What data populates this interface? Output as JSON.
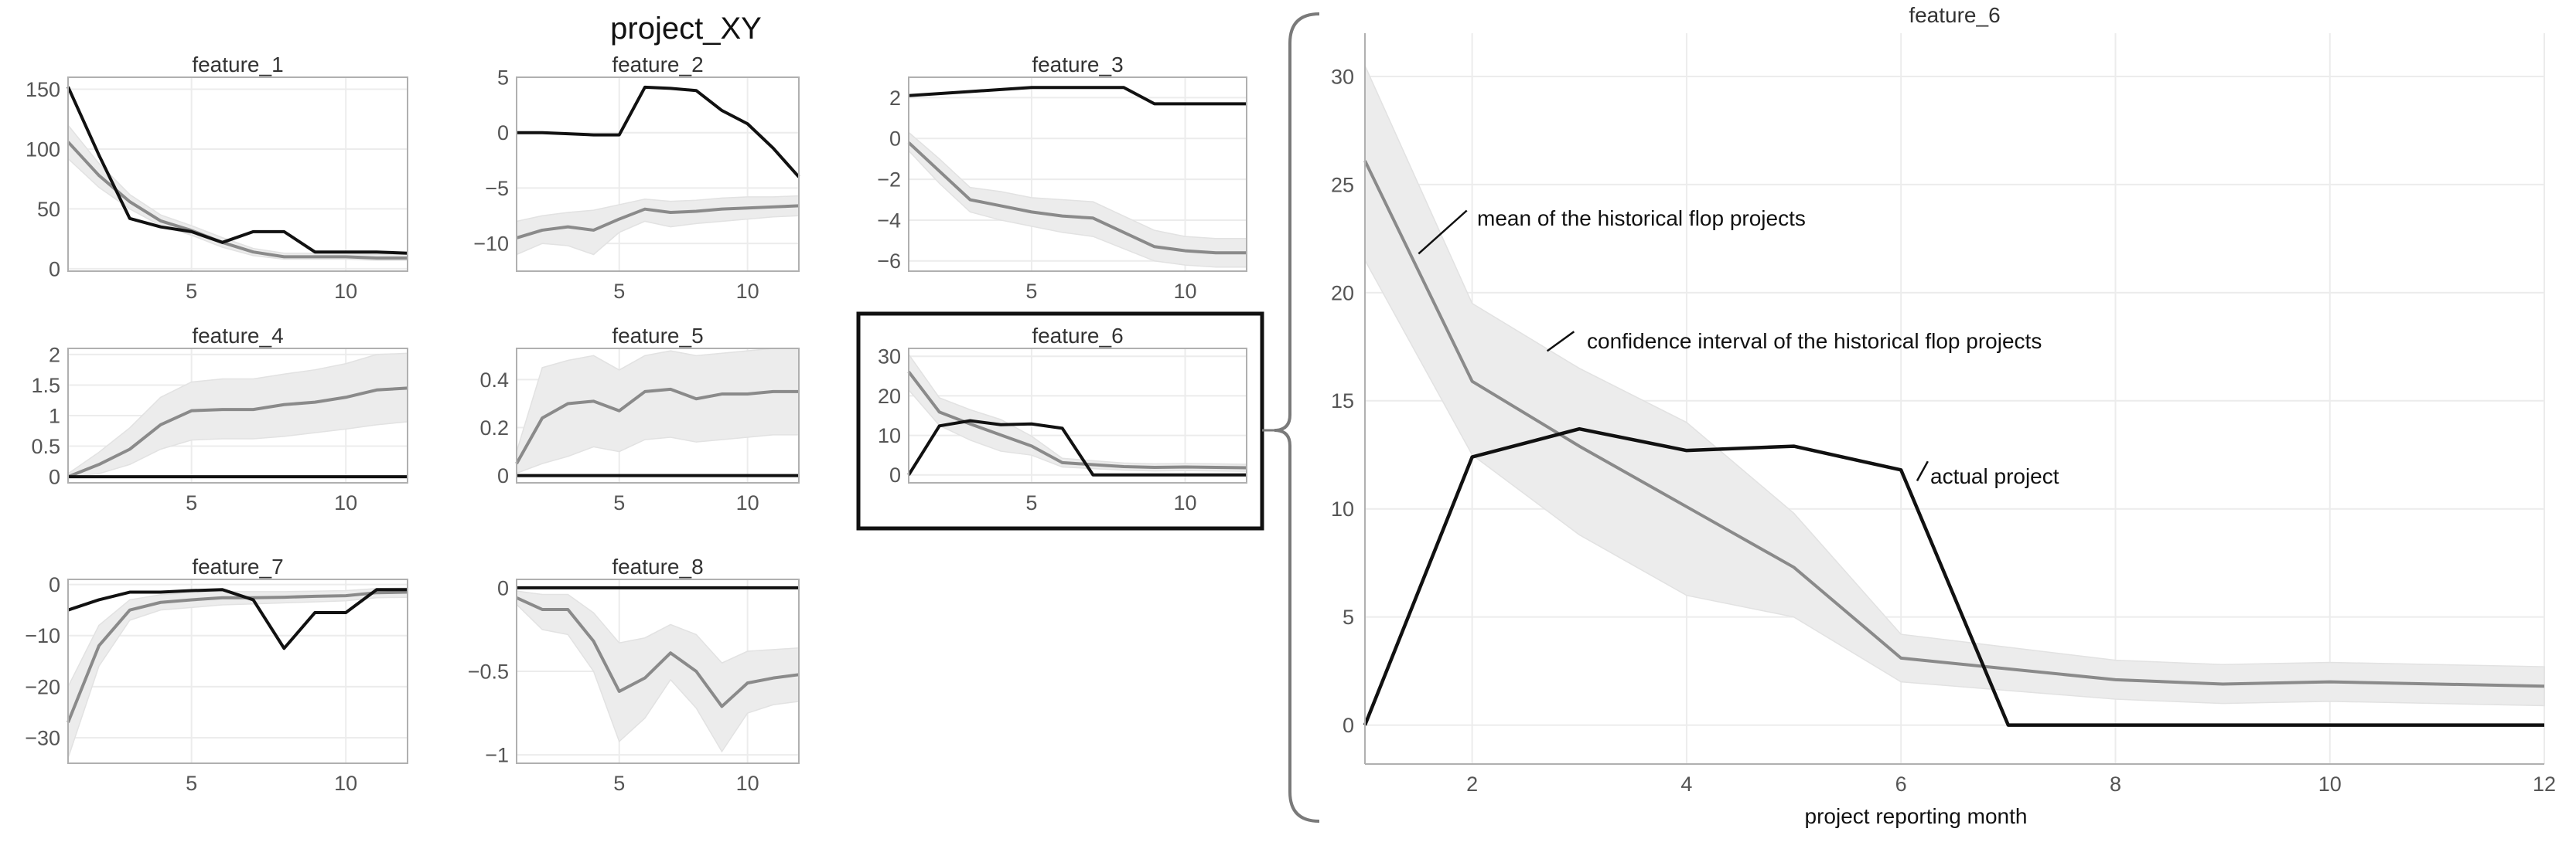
{
  "title": "project_XY",
  "colors": {
    "actual": "#111111",
    "mean": "#8a8a8a",
    "band": "#ececec",
    "band_edge": "#e2e2e2",
    "grid": "#ececec",
    "frame": "#b0b0b0",
    "axis_text": "#555555",
    "highlight": "#111111"
  },
  "chart_data": [
    {
      "type": "line",
      "id": "feature_1",
      "title": "feature_1",
      "x": [
        1,
        2,
        3,
        4,
        5,
        6,
        7,
        8,
        9,
        10,
        11,
        12
      ],
      "ylim": [
        -2,
        160
      ],
      "yticks": [
        0,
        50,
        100,
        150
      ],
      "ytick_labels": [
        "0",
        "50",
        "100",
        "150"
      ],
      "xticks": [
        5,
        10
      ],
      "xtick_labels": [
        "5",
        "10"
      ],
      "series": [
        {
          "name": "actual project",
          "values": [
            152,
            95,
            42,
            35,
            31,
            22,
            31,
            31,
            14,
            14,
            14,
            13
          ]
        },
        {
          "name": "mean of the historical flop projects",
          "values": [
            106,
            78,
            56,
            40,
            32,
            22,
            14,
            10,
            10,
            10,
            9,
            9
          ]
        },
        {
          "name": "ci_low",
          "values": [
            92,
            68,
            50,
            36,
            28,
            18,
            11,
            8,
            8,
            8,
            7,
            7
          ]
        },
        {
          "name": "ci_high",
          "values": [
            120,
            88,
            62,
            45,
            36,
            26,
            17,
            13,
            13,
            13,
            12,
            12
          ]
        }
      ]
    },
    {
      "type": "line",
      "id": "feature_2",
      "title": "feature_2",
      "x": [
        1,
        2,
        3,
        4,
        5,
        6,
        7,
        8,
        9,
        10,
        11,
        12
      ],
      "ylim": [
        -12.5,
        5
      ],
      "yticks": [
        -10,
        -5,
        0,
        5
      ],
      "ytick_labels": [
        "−10",
        "−5",
        "0",
        "5"
      ],
      "xticks": [
        5,
        10
      ],
      "xtick_labels": [
        "5",
        "10"
      ],
      "series": [
        {
          "name": "actual project",
          "values": [
            0,
            0,
            -0.1,
            -0.2,
            -0.2,
            4.1,
            4,
            3.8,
            2,
            0.8,
            -1.4,
            -4
          ]
        },
        {
          "name": "mean of the historical flop projects",
          "values": [
            -9.5,
            -8.8,
            -8.5,
            -8.8,
            -7.8,
            -6.9,
            -7.2,
            -7.1,
            -6.9,
            -6.8,
            -6.7,
            -6.6
          ]
        },
        {
          "name": "ci_low",
          "values": [
            -11,
            -10,
            -10.2,
            -11,
            -9,
            -8,
            -8.5,
            -8.2,
            -8,
            -7.8,
            -7.6,
            -7.5
          ]
        },
        {
          "name": "ci_high",
          "values": [
            -8,
            -7.5,
            -7.2,
            -7,
            -6.5,
            -6,
            -6.2,
            -6.1,
            -5.9,
            -5.8,
            -5.8,
            -5.7
          ]
        }
      ]
    },
    {
      "type": "line",
      "id": "feature_3",
      "title": "feature_3",
      "x": [
        1,
        2,
        3,
        4,
        5,
        6,
        7,
        8,
        9,
        10,
        11,
        12
      ],
      "ylim": [
        -6.5,
        3
      ],
      "yticks": [
        -6,
        -4,
        -2,
        0,
        2
      ],
      "ytick_labels": [
        "−6",
        "−4",
        "−2",
        "0",
        "2"
      ],
      "xticks": [
        5,
        10
      ],
      "xtick_labels": [
        "5",
        "10"
      ],
      "series": [
        {
          "name": "actual project",
          "values": [
            2.1,
            2.2,
            2.3,
            2.4,
            2.5,
            2.5,
            2.5,
            2.5,
            1.7,
            1.7,
            1.7,
            1.7
          ]
        },
        {
          "name": "mean of the historical flop projects",
          "values": [
            -0.2,
            -1.6,
            -3,
            -3.3,
            -3.6,
            -3.8,
            -3.9,
            -4.6,
            -5.3,
            -5.5,
            -5.6,
            -5.6
          ]
        },
        {
          "name": "ci_low",
          "values": [
            -0.6,
            -2.2,
            -3.6,
            -4,
            -4.3,
            -4.6,
            -4.8,
            -5.4,
            -6,
            -6.2,
            -6.3,
            -6.3
          ]
        },
        {
          "name": "ci_high",
          "values": [
            0.3,
            -1,
            -2.4,
            -2.6,
            -2.9,
            -3,
            -3.1,
            -3.8,
            -4.5,
            -4.8,
            -4.9,
            -4.9
          ]
        }
      ]
    },
    {
      "type": "line",
      "id": "feature_4",
      "title": "feature_4",
      "x": [
        1,
        2,
        3,
        4,
        5,
        6,
        7,
        8,
        9,
        10,
        11,
        12
      ],
      "ylim": [
        -0.1,
        2.1
      ],
      "yticks": [
        0,
        0.5,
        1,
        1.5,
        2
      ],
      "ytick_labels": [
        "0",
        "0.5",
        "1",
        "1.5",
        "2"
      ],
      "xticks": [
        5,
        10
      ],
      "xtick_labels": [
        "5",
        "10"
      ],
      "series": [
        {
          "name": "actual project",
          "values": [
            0,
            0,
            0,
            0,
            0,
            0,
            0,
            0,
            0,
            0,
            0,
            0
          ]
        },
        {
          "name": "mean of the historical flop projects",
          "values": [
            0,
            0.2,
            0.45,
            0.85,
            1.08,
            1.1,
            1.1,
            1.18,
            1.22,
            1.3,
            1.42,
            1.45
          ]
        },
        {
          "name": "ci_low",
          "values": [
            0,
            0.05,
            0.2,
            0.45,
            0.6,
            0.62,
            0.62,
            0.66,
            0.72,
            0.78,
            0.85,
            0.9
          ]
        },
        {
          "name": "ci_high",
          "values": [
            0.05,
            0.4,
            0.8,
            1.3,
            1.55,
            1.6,
            1.6,
            1.68,
            1.75,
            1.85,
            2.0,
            2.02
          ]
        }
      ]
    },
    {
      "type": "line",
      "id": "feature_5",
      "title": "feature_5",
      "x": [
        1,
        2,
        3,
        4,
        5,
        6,
        7,
        8,
        9,
        10,
        11,
        12
      ],
      "ylim": [
        -0.03,
        0.53
      ],
      "yticks": [
        0,
        0.2,
        0.4
      ],
      "ytick_labels": [
        "0",
        "0.2",
        "0.4"
      ],
      "xticks": [
        5,
        10
      ],
      "xtick_labels": [
        "5",
        "10"
      ],
      "series": [
        {
          "name": "actual project",
          "values": [
            0,
            0,
            0,
            0,
            0,
            0,
            0,
            0,
            0,
            0,
            0,
            0
          ]
        },
        {
          "name": "mean of the historical flop projects",
          "values": [
            0.05,
            0.24,
            0.3,
            0.31,
            0.27,
            0.35,
            0.36,
            0.32,
            0.34,
            0.34,
            0.35,
            0.35
          ]
        },
        {
          "name": "ci_low",
          "values": [
            0.01,
            0.05,
            0.08,
            0.12,
            0.1,
            0.15,
            0.16,
            0.14,
            0.15,
            0.16,
            0.17,
            0.17
          ]
        },
        {
          "name": "ci_high",
          "values": [
            0.1,
            0.45,
            0.48,
            0.5,
            0.44,
            0.5,
            0.52,
            0.5,
            0.51,
            0.52,
            0.53,
            0.53
          ]
        }
      ]
    },
    {
      "type": "line",
      "id": "feature_6",
      "title": "feature_6",
      "highlighted": true,
      "x": [
        1,
        2,
        3,
        4,
        5,
        6,
        7,
        8,
        9,
        10,
        11,
        12
      ],
      "ylim": [
        -2,
        32
      ],
      "yticks": [
        0,
        10,
        20,
        30
      ],
      "ytick_labels": [
        "0",
        "10",
        "20",
        "30"
      ],
      "xticks": [
        5,
        10
      ],
      "xtick_labels": [
        "5",
        "10"
      ],
      "series": [
        {
          "name": "actual project",
          "values": [
            0,
            12.4,
            13.7,
            12.7,
            12.9,
            11.8,
            0,
            0,
            0,
            0,
            0,
            0
          ]
        },
        {
          "name": "mean of the historical flop projects",
          "values": [
            26.1,
            15.9,
            12.9,
            10.1,
            7.3,
            3.1,
            2.6,
            2.1,
            1.9,
            2,
            1.9,
            1.8
          ]
        },
        {
          "name": "ci_low",
          "values": [
            21.5,
            12.5,
            8.8,
            6,
            5,
            2,
            1.6,
            1.2,
            1,
            1.1,
            1,
            0.9
          ]
        },
        {
          "name": "ci_high",
          "values": [
            30.5,
            19.5,
            16.5,
            14,
            9.8,
            4.2,
            3.6,
            3,
            2.8,
            2.9,
            2.8,
            2.7
          ]
        }
      ]
    },
    {
      "type": "line",
      "id": "feature_7",
      "title": "feature_7",
      "x": [
        1,
        2,
        3,
        4,
        5,
        6,
        7,
        8,
        9,
        10,
        11,
        12
      ],
      "ylim": [
        -35,
        1
      ],
      "yticks": [
        -30,
        -20,
        -10,
        0
      ],
      "ytick_labels": [
        "−30",
        "−20",
        "−10",
        "0"
      ],
      "xticks": [
        5,
        10
      ],
      "xtick_labels": [
        "5",
        "10"
      ],
      "series": [
        {
          "name": "actual project",
          "values": [
            -5,
            -3,
            -1.5,
            -1.5,
            -1.2,
            -1,
            -3,
            -12.5,
            -5.5,
            -5.5,
            -1,
            -1
          ]
        },
        {
          "name": "mean of the historical flop projects",
          "values": [
            -27,
            -12,
            -5,
            -3.5,
            -3,
            -2.6,
            -2.6,
            -2.5,
            -2.3,
            -2.2,
            -1.6,
            -1.5
          ]
        },
        {
          "name": "ci_low",
          "values": [
            -34,
            -16,
            -7,
            -5,
            -4.5,
            -4,
            -3.8,
            -3.6,
            -3.4,
            -3.2,
            -2.6,
            -2.5
          ]
        },
        {
          "name": "ci_high",
          "values": [
            -20,
            -8,
            -3,
            -2,
            -1.6,
            -1.4,
            -1.4,
            -1.4,
            -1.3,
            -1.2,
            -0.8,
            -0.7
          ]
        }
      ]
    },
    {
      "type": "line",
      "id": "feature_8",
      "title": "feature_8",
      "x": [
        1,
        2,
        3,
        4,
        5,
        6,
        7,
        8,
        9,
        10,
        11,
        12
      ],
      "ylim": [
        -1.05,
        0.05
      ],
      "yticks": [
        -1,
        -0.5,
        0
      ],
      "ytick_labels": [
        "−1",
        "−0.5",
        "0"
      ],
      "xticks": [
        5,
        10
      ],
      "xtick_labels": [
        "5",
        "10"
      ],
      "series": [
        {
          "name": "actual project",
          "values": [
            0,
            0,
            0,
            0,
            0,
            0,
            0,
            0,
            0,
            0,
            0,
            0
          ]
        },
        {
          "name": "mean of the historical flop projects",
          "values": [
            -0.06,
            -0.13,
            -0.13,
            -0.32,
            -0.62,
            -0.54,
            -0.39,
            -0.5,
            -0.71,
            -0.57,
            -0.54,
            -0.52
          ]
        },
        {
          "name": "ci_low",
          "values": [
            -0.1,
            -0.25,
            -0.28,
            -0.5,
            -0.92,
            -0.78,
            -0.55,
            -0.72,
            -0.98,
            -0.75,
            -0.7,
            -0.68
          ]
        },
        {
          "name": "ci_high",
          "values": [
            -0.02,
            -0.04,
            -0.04,
            -0.15,
            -0.33,
            -0.3,
            -0.22,
            -0.28,
            -0.45,
            -0.38,
            -0.37,
            -0.36
          ]
        }
      ]
    },
    {
      "type": "line",
      "id": "feature_6_detail",
      "title": "feature_6",
      "xlabel": "project reporting month",
      "x": [
        1,
        2,
        3,
        4,
        5,
        6,
        7,
        8,
        9,
        10,
        11,
        12
      ],
      "xlim": [
        1,
        12
      ],
      "ylim": [
        -1.8,
        32
      ],
      "yticks": [
        0,
        5,
        10,
        15,
        20,
        25,
        30
      ],
      "ytick_labels": [
        "0",
        "5",
        "10",
        "15",
        "20",
        "25",
        "30"
      ],
      "xticks": [
        2,
        4,
        6,
        8,
        10,
        12
      ],
      "xtick_labels": [
        "2",
        "4",
        "6",
        "8",
        "10",
        "12"
      ],
      "annotations": [
        {
          "text": "mean of the historical flop projects",
          "x": 1.5,
          "y": 21.8
        },
        {
          "text": "confidence interval of the historical flop projects",
          "x": 2.7,
          "y": 17.3
        },
        {
          "text": "actual project",
          "x": 6.15,
          "y": 11.5
        }
      ],
      "series": [
        {
          "name": "actual project",
          "values": [
            0,
            12.4,
            13.7,
            12.7,
            12.9,
            11.8,
            0,
            0,
            0,
            0,
            0,
            0
          ]
        },
        {
          "name": "mean of the historical flop projects",
          "values": [
            26.1,
            15.9,
            12.9,
            10.1,
            7.3,
            3.1,
            2.6,
            2.1,
            1.9,
            2,
            1.9,
            1.8
          ]
        },
        {
          "name": "ci_low",
          "values": [
            21.5,
            12.5,
            8.8,
            6,
            5,
            2,
            1.6,
            1.2,
            1,
            1.1,
            1,
            0.9
          ]
        },
        {
          "name": "ci_high",
          "values": [
            30.5,
            19.5,
            16.5,
            14,
            9.8,
            4.2,
            3.6,
            3,
            2.8,
            2.9,
            2.8,
            2.7
          ]
        }
      ]
    }
  ]
}
